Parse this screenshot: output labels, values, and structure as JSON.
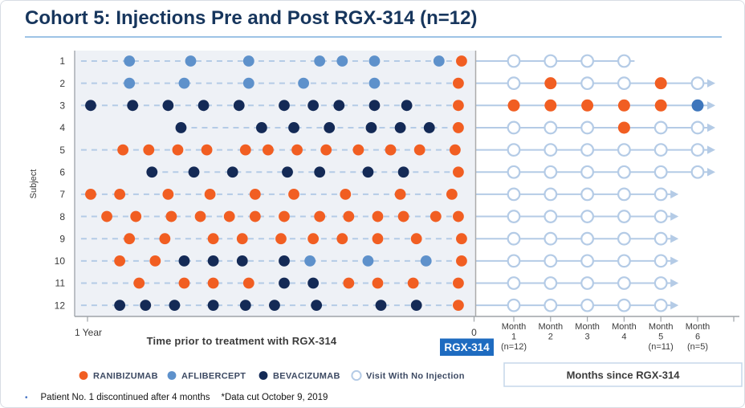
{
  "title": "Cohort 5: Injections Pre and Post RGX-314 (n=12)",
  "colors": {
    "title": "#17365D",
    "ranibizumab": "#F15E22",
    "aflibercept": "#5E91CB",
    "aflibercept_post": "#3E76BC",
    "bevacizumab": "#142A56",
    "line": "#B4CBE6",
    "no_injection_stroke": "#B4CBE6",
    "panel_bg": "#EEF1F6",
    "axis": "#9EA3A8",
    "separator": "#ABABAB",
    "badge_bg": "#1E6BC0",
    "box_border": "#C5D7EA"
  },
  "axes": {
    "y_label": "Subject",
    "pre_left_label": "1 Year",
    "pre_axis_label": "Time prior to treatment with RGX-314",
    "pre_right_label": "0",
    "badge": "RGX-314",
    "post_box_label": "Months since RGX-314",
    "months": [
      {
        "line1": "Month",
        "line2": "1",
        "line3": "(n=12)"
      },
      {
        "line1": "Month",
        "line2": "2",
        "line3": ""
      },
      {
        "line1": "Month",
        "line2": "3",
        "line3": ""
      },
      {
        "line1": "Month",
        "line2": "4",
        "line3": ""
      },
      {
        "line1": "Month",
        "line2": "5",
        "line3": "(n=11)"
      },
      {
        "line1": "Month",
        "line2": "6",
        "line3": "(n=5)"
      }
    ]
  },
  "legend": [
    {
      "label": "RANIBIZUMAB",
      "type": "filled",
      "color_key": "ranibizumab"
    },
    {
      "label": "AFLIBERCEPT",
      "type": "filled",
      "color_key": "aflibercept"
    },
    {
      "label": "BEVACIZUMAB",
      "type": "filled",
      "color_key": "bevacizumab"
    },
    {
      "label": "Visit With No Injection",
      "type": "open",
      "color_key": "no_injection_stroke"
    }
  ],
  "footnote": {
    "bullet": "•",
    "bullet_text": "Patient No. 1 discontinued after 4 months",
    "data_cut": "*Data cut October 9, 2019"
  },
  "chart_data": {
    "type": "scatter",
    "description": "Injection timeline per subject: pre-treatment injections (months before RGX-314, x-axis 1 Year to 0) and monthly post-treatment visits (Month 1-6). Drug codes: R=RANIBIZUMAB, A=AFLIBERCEPT, B=BEVACIZUMAB, O=visit with no injection.",
    "x_pre_range_months": [
      12,
      0
    ],
    "x_post_months": [
      1,
      2,
      3,
      4,
      5,
      6
    ],
    "subjects": [
      {
        "id": "1",
        "line_from_m": 12.2,
        "pre": [
          {
            "m": 10.7,
            "d": "A"
          },
          {
            "m": 8.8,
            "d": "A"
          },
          {
            "m": 7.0,
            "d": "A"
          },
          {
            "m": 4.8,
            "d": "A"
          },
          {
            "m": 4.1,
            "d": "A"
          },
          {
            "m": 3.1,
            "d": "A"
          },
          {
            "m": 1.1,
            "d": "A"
          },
          {
            "m": 0.4,
            "d": "R"
          }
        ],
        "post": [
          "O",
          "O",
          "O",
          "O"
        ],
        "arrow": false
      },
      {
        "id": "2",
        "line_from_m": 12.2,
        "pre": [
          {
            "m": 10.7,
            "d": "A"
          },
          {
            "m": 9.0,
            "d": "A"
          },
          {
            "m": 7.0,
            "d": "A"
          },
          {
            "m": 5.3,
            "d": "A"
          },
          {
            "m": 3.1,
            "d": "A"
          },
          {
            "m": 0.5,
            "d": "R"
          }
        ],
        "post": [
          "O",
          "R",
          "O",
          "O",
          "R",
          "O"
        ],
        "arrow": true
      },
      {
        "id": "3",
        "line_from_m": 12.2,
        "pre": [
          {
            "m": 11.9,
            "d": "B"
          },
          {
            "m": 10.6,
            "d": "B"
          },
          {
            "m": 9.5,
            "d": "B"
          },
          {
            "m": 8.4,
            "d": "B"
          },
          {
            "m": 7.3,
            "d": "B"
          },
          {
            "m": 5.9,
            "d": "B"
          },
          {
            "m": 5.0,
            "d": "B"
          },
          {
            "m": 4.2,
            "d": "B"
          },
          {
            "m": 3.1,
            "d": "B"
          },
          {
            "m": 2.1,
            "d": "B"
          },
          {
            "m": 0.5,
            "d": "R"
          }
        ],
        "post": [
          "R",
          "R",
          "R",
          "R",
          "R",
          "A"
        ],
        "arrow": true
      },
      {
        "id": "4",
        "line_from_m": 9.1,
        "pre": [
          {
            "m": 9.1,
            "d": "B"
          },
          {
            "m": 6.6,
            "d": "B"
          },
          {
            "m": 5.6,
            "d": "B"
          },
          {
            "m": 4.5,
            "d": "B"
          },
          {
            "m": 3.2,
            "d": "B"
          },
          {
            "m": 2.3,
            "d": "B"
          },
          {
            "m": 1.4,
            "d": "B"
          },
          {
            "m": 0.5,
            "d": "R"
          }
        ],
        "post": [
          "O",
          "O",
          "O",
          "R",
          "O",
          "O"
        ],
        "arrow": true
      },
      {
        "id": "5",
        "line_from_m": 12.2,
        "pre": [
          {
            "m": 10.9,
            "d": "R"
          },
          {
            "m": 10.1,
            "d": "R"
          },
          {
            "m": 9.2,
            "d": "R"
          },
          {
            "m": 8.3,
            "d": "R"
          },
          {
            "m": 7.1,
            "d": "R"
          },
          {
            "m": 6.4,
            "d": "R"
          },
          {
            "m": 5.5,
            "d": "R"
          },
          {
            "m": 4.6,
            "d": "R"
          },
          {
            "m": 3.6,
            "d": "R"
          },
          {
            "m": 2.6,
            "d": "R"
          },
          {
            "m": 1.7,
            "d": "R"
          },
          {
            "m": 0.6,
            "d": "R"
          }
        ],
        "post": [
          "O",
          "O",
          "O",
          "O",
          "O",
          "O"
        ],
        "arrow": true
      },
      {
        "id": "6",
        "line_from_m": 10.0,
        "pre": [
          {
            "m": 10.0,
            "d": "B"
          },
          {
            "m": 8.7,
            "d": "B"
          },
          {
            "m": 7.5,
            "d": "B"
          },
          {
            "m": 5.8,
            "d": "B"
          },
          {
            "m": 4.8,
            "d": "B"
          },
          {
            "m": 3.3,
            "d": "B"
          },
          {
            "m": 2.2,
            "d": "B"
          },
          {
            "m": 0.5,
            "d": "R"
          }
        ],
        "post": [
          "O",
          "O",
          "O",
          "O",
          "O",
          "O"
        ],
        "arrow": true
      },
      {
        "id": "7",
        "line_from_m": 12.2,
        "pre": [
          {
            "m": 11.9,
            "d": "R"
          },
          {
            "m": 11.0,
            "d": "R"
          },
          {
            "m": 9.5,
            "d": "R"
          },
          {
            "m": 8.2,
            "d": "R"
          },
          {
            "m": 6.8,
            "d": "R"
          },
          {
            "m": 5.6,
            "d": "R"
          },
          {
            "m": 4.0,
            "d": "R"
          },
          {
            "m": 2.3,
            "d": "R"
          },
          {
            "m": 0.7,
            "d": "R"
          }
        ],
        "post": [
          "O",
          "O",
          "O",
          "O",
          "O"
        ],
        "arrow": true
      },
      {
        "id": "8",
        "line_from_m": 12.2,
        "pre": [
          {
            "m": 11.4,
            "d": "R"
          },
          {
            "m": 10.5,
            "d": "R"
          },
          {
            "m": 9.4,
            "d": "R"
          },
          {
            "m": 8.5,
            "d": "R"
          },
          {
            "m": 7.6,
            "d": "R"
          },
          {
            "m": 6.8,
            "d": "R"
          },
          {
            "m": 5.9,
            "d": "R"
          },
          {
            "m": 4.8,
            "d": "R"
          },
          {
            "m": 3.9,
            "d": "R"
          },
          {
            "m": 3.0,
            "d": "R"
          },
          {
            "m": 2.2,
            "d": "R"
          },
          {
            "m": 1.2,
            "d": "R"
          },
          {
            "m": 0.5,
            "d": "R"
          }
        ],
        "post": [
          "O",
          "O",
          "O",
          "O",
          "O"
        ],
        "arrow": true
      },
      {
        "id": "9",
        "line_from_m": 12.2,
        "pre": [
          {
            "m": 10.7,
            "d": "R"
          },
          {
            "m": 9.6,
            "d": "R"
          },
          {
            "m": 8.1,
            "d": "R"
          },
          {
            "m": 7.2,
            "d": "R"
          },
          {
            "m": 6.0,
            "d": "R"
          },
          {
            "m": 5.0,
            "d": "R"
          },
          {
            "m": 4.1,
            "d": "R"
          },
          {
            "m": 3.0,
            "d": "R"
          },
          {
            "m": 1.8,
            "d": "R"
          },
          {
            "m": 0.4,
            "d": "R"
          }
        ],
        "post": [
          "O",
          "O",
          "O",
          "O",
          "O"
        ],
        "arrow": true
      },
      {
        "id": "10",
        "line_from_m": 12.2,
        "pre": [
          {
            "m": 11.0,
            "d": "R"
          },
          {
            "m": 9.9,
            "d": "R"
          },
          {
            "m": 9.0,
            "d": "B"
          },
          {
            "m": 8.1,
            "d": "B"
          },
          {
            "m": 7.2,
            "d": "B"
          },
          {
            "m": 5.9,
            "d": "B"
          },
          {
            "m": 5.1,
            "d": "A"
          },
          {
            "m": 3.3,
            "d": "A"
          },
          {
            "m": 1.5,
            "d": "A"
          },
          {
            "m": 0.4,
            "d": "R"
          }
        ],
        "post": [
          "O",
          "O",
          "O",
          "O",
          "O"
        ],
        "arrow": true
      },
      {
        "id": "11",
        "line_from_m": 12.2,
        "pre": [
          {
            "m": 10.4,
            "d": "R"
          },
          {
            "m": 9.0,
            "d": "R"
          },
          {
            "m": 8.1,
            "d": "R"
          },
          {
            "m": 7.0,
            "d": "R"
          },
          {
            "m": 5.9,
            "d": "B"
          },
          {
            "m": 5.0,
            "d": "B"
          },
          {
            "m": 3.9,
            "d": "R"
          },
          {
            "m": 3.0,
            "d": "R"
          },
          {
            "m": 1.9,
            "d": "R"
          },
          {
            "m": 0.5,
            "d": "R"
          }
        ],
        "post": [
          "O",
          "O",
          "O",
          "O",
          "O"
        ],
        "arrow": true
      },
      {
        "id": "12",
        "line_from_m": 12.2,
        "pre": [
          {
            "m": 11.0,
            "d": "B"
          },
          {
            "m": 10.2,
            "d": "B"
          },
          {
            "m": 9.3,
            "d": "B"
          },
          {
            "m": 8.1,
            "d": "B"
          },
          {
            "m": 7.1,
            "d": "B"
          },
          {
            "m": 6.2,
            "d": "B"
          },
          {
            "m": 4.9,
            "d": "B"
          },
          {
            "m": 2.9,
            "d": "B"
          },
          {
            "m": 1.8,
            "d": "B"
          },
          {
            "m": 0.5,
            "d": "R"
          }
        ],
        "post": [
          "O",
          "O",
          "O",
          "O",
          "O"
        ],
        "arrow": true
      }
    ]
  }
}
